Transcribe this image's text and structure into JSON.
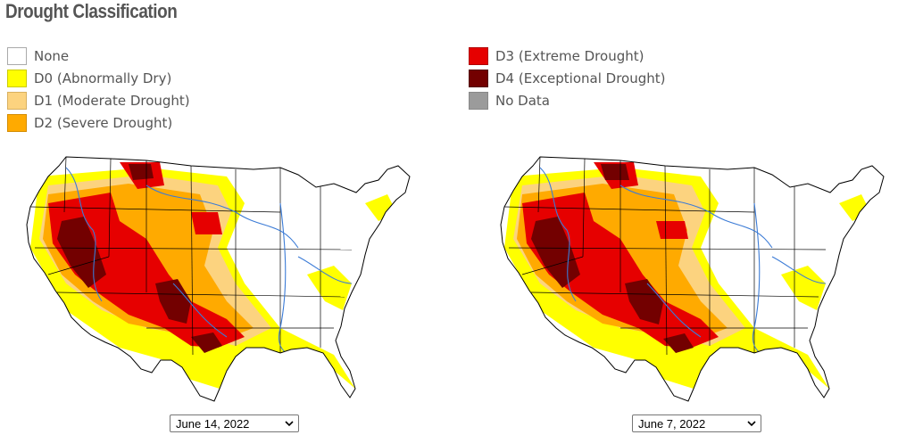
{
  "title": "Drought Classification",
  "legend": {
    "left": [
      {
        "label": "None",
        "color": "#ffffff",
        "icon": "none-swatch"
      },
      {
        "label": "D0 (Abnormally Dry)",
        "color": "#ffff00",
        "icon": "d0-swatch"
      },
      {
        "label": "D1 (Moderate Drought)",
        "color": "#fcd37f",
        "icon": "d1-swatch"
      },
      {
        "label": "D2 (Severe Drought)",
        "color": "#ffaa00",
        "icon": "d2-swatch"
      }
    ],
    "right": [
      {
        "label": "D3 (Extreme Drought)",
        "color": "#e60000",
        "icon": "d3-swatch"
      },
      {
        "label": "D4 (Exceptional Drought)",
        "color": "#730000",
        "icon": "d4-swatch"
      },
      {
        "label": "No Data",
        "color": "#9b9b9b",
        "icon": "nodata-swatch"
      }
    ]
  },
  "maps": [
    {
      "date_selected": "June 14, 2022"
    },
    {
      "date_selected": "June 7, 2022"
    }
  ]
}
